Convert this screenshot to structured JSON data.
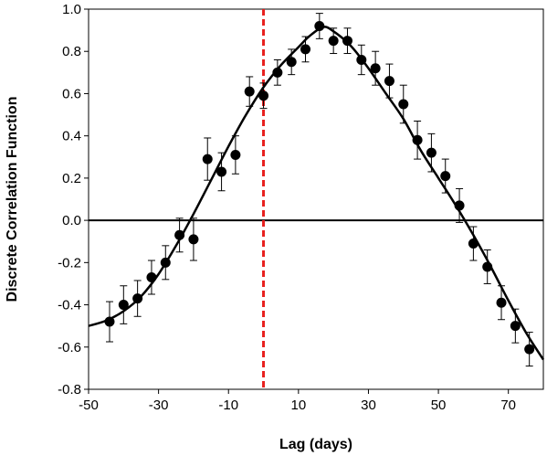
{
  "chart_data": {
    "type": "scatter",
    "title": "",
    "xlabel": "Lag (days)",
    "ylabel": "Discrete Correlation Function",
    "xlim": [
      -50,
      80
    ],
    "ylim": [
      -0.8,
      1.0
    ],
    "x_ticks": [
      -50,
      -30,
      -10,
      10,
      30,
      50,
      70
    ],
    "y_ticks": [
      -0.8,
      -0.6,
      -0.4,
      -0.2,
      0.0,
      0.2,
      0.4,
      0.6,
      0.8,
      1.0
    ],
    "x_tick_labels": [
      "-50",
      "-30",
      "-10",
      "10",
      "30",
      "50",
      "70"
    ],
    "y_tick_labels": [
      "-0.8",
      "-0.6",
      "-0.4",
      "-0.2",
      "0.0",
      "0.2",
      "0.4",
      "0.6",
      "0.8",
      "1.0"
    ],
    "grid": false,
    "legend": "none",
    "reference_lines": {
      "horizontal_y": 0.0,
      "vertical_x": 0,
      "vertical_color": "#e8201e"
    },
    "points": [
      {
        "x": -44,
        "y": -0.48,
        "err": 0.095
      },
      {
        "x": -40,
        "y": -0.4,
        "err": 0.09
      },
      {
        "x": -36,
        "y": -0.37,
        "err": 0.085
      },
      {
        "x": -32,
        "y": -0.27,
        "err": 0.08
      },
      {
        "x": -28,
        "y": -0.2,
        "err": 0.08
      },
      {
        "x": -24,
        "y": -0.07,
        "err": 0.08
      },
      {
        "x": -20,
        "y": -0.09,
        "err": 0.1
      },
      {
        "x": -16,
        "y": 0.29,
        "err": 0.1
      },
      {
        "x": -12,
        "y": 0.23,
        "err": 0.09
      },
      {
        "x": -8,
        "y": 0.31,
        "err": 0.09
      },
      {
        "x": -4,
        "y": 0.61,
        "err": 0.07
      },
      {
        "x": 0,
        "y": 0.59,
        "err": 0.06
      },
      {
        "x": 4,
        "y": 0.7,
        "err": 0.06
      },
      {
        "x": 8,
        "y": 0.75,
        "err": 0.06
      },
      {
        "x": 12,
        "y": 0.81,
        "err": 0.06
      },
      {
        "x": 16,
        "y": 0.92,
        "err": 0.06
      },
      {
        "x": 20,
        "y": 0.85,
        "err": 0.06
      },
      {
        "x": 24,
        "y": 0.85,
        "err": 0.06
      },
      {
        "x": 28,
        "y": 0.76,
        "err": 0.07
      },
      {
        "x": 32,
        "y": 0.72,
        "err": 0.08
      },
      {
        "x": 36,
        "y": 0.66,
        "err": 0.08
      },
      {
        "x": 40,
        "y": 0.55,
        "err": 0.09
      },
      {
        "x": 44,
        "y": 0.38,
        "err": 0.09
      },
      {
        "x": 48,
        "y": 0.32,
        "err": 0.09
      },
      {
        "x": 52,
        "y": 0.21,
        "err": 0.08
      },
      {
        "x": 56,
        "y": 0.07,
        "err": 0.08
      },
      {
        "x": 60,
        "y": -0.11,
        "err": 0.08
      },
      {
        "x": 64,
        "y": -0.22,
        "err": 0.08
      },
      {
        "x": 68,
        "y": -0.39,
        "err": 0.08
      },
      {
        "x": 72,
        "y": -0.5,
        "err": 0.08
      },
      {
        "x": 76,
        "y": -0.61,
        "err": 0.08
      }
    ],
    "fit_curve": [
      {
        "x": -50,
        "y": -0.5
      },
      {
        "x": -45,
        "y": -0.475
      },
      {
        "x": -40,
        "y": -0.43
      },
      {
        "x": -35,
        "y": -0.36
      },
      {
        "x": -30,
        "y": -0.255
      },
      {
        "x": -25,
        "y": -0.12
      },
      {
        "x": -20,
        "y": 0.03
      },
      {
        "x": -15,
        "y": 0.19
      },
      {
        "x": -10,
        "y": 0.35
      },
      {
        "x": -5,
        "y": 0.5
      },
      {
        "x": 0,
        "y": 0.63
      },
      {
        "x": 5,
        "y": 0.735
      },
      {
        "x": 10,
        "y": 0.82
      },
      {
        "x": 13,
        "y": 0.87
      },
      {
        "x": 17,
        "y": 0.915
      },
      {
        "x": 20,
        "y": 0.895
      },
      {
        "x": 25,
        "y": 0.825
      },
      {
        "x": 30,
        "y": 0.72
      },
      {
        "x": 35,
        "y": 0.6
      },
      {
        "x": 40,
        "y": 0.48
      },
      {
        "x": 45,
        "y": 0.33
      },
      {
        "x": 50,
        "y": 0.2
      },
      {
        "x": 55,
        "y": 0.07
      },
      {
        "x": 60,
        "y": -0.07
      },
      {
        "x": 65,
        "y": -0.22
      },
      {
        "x": 70,
        "y": -0.38
      },
      {
        "x": 75,
        "y": -0.53
      },
      {
        "x": 80,
        "y": -0.66
      }
    ]
  }
}
